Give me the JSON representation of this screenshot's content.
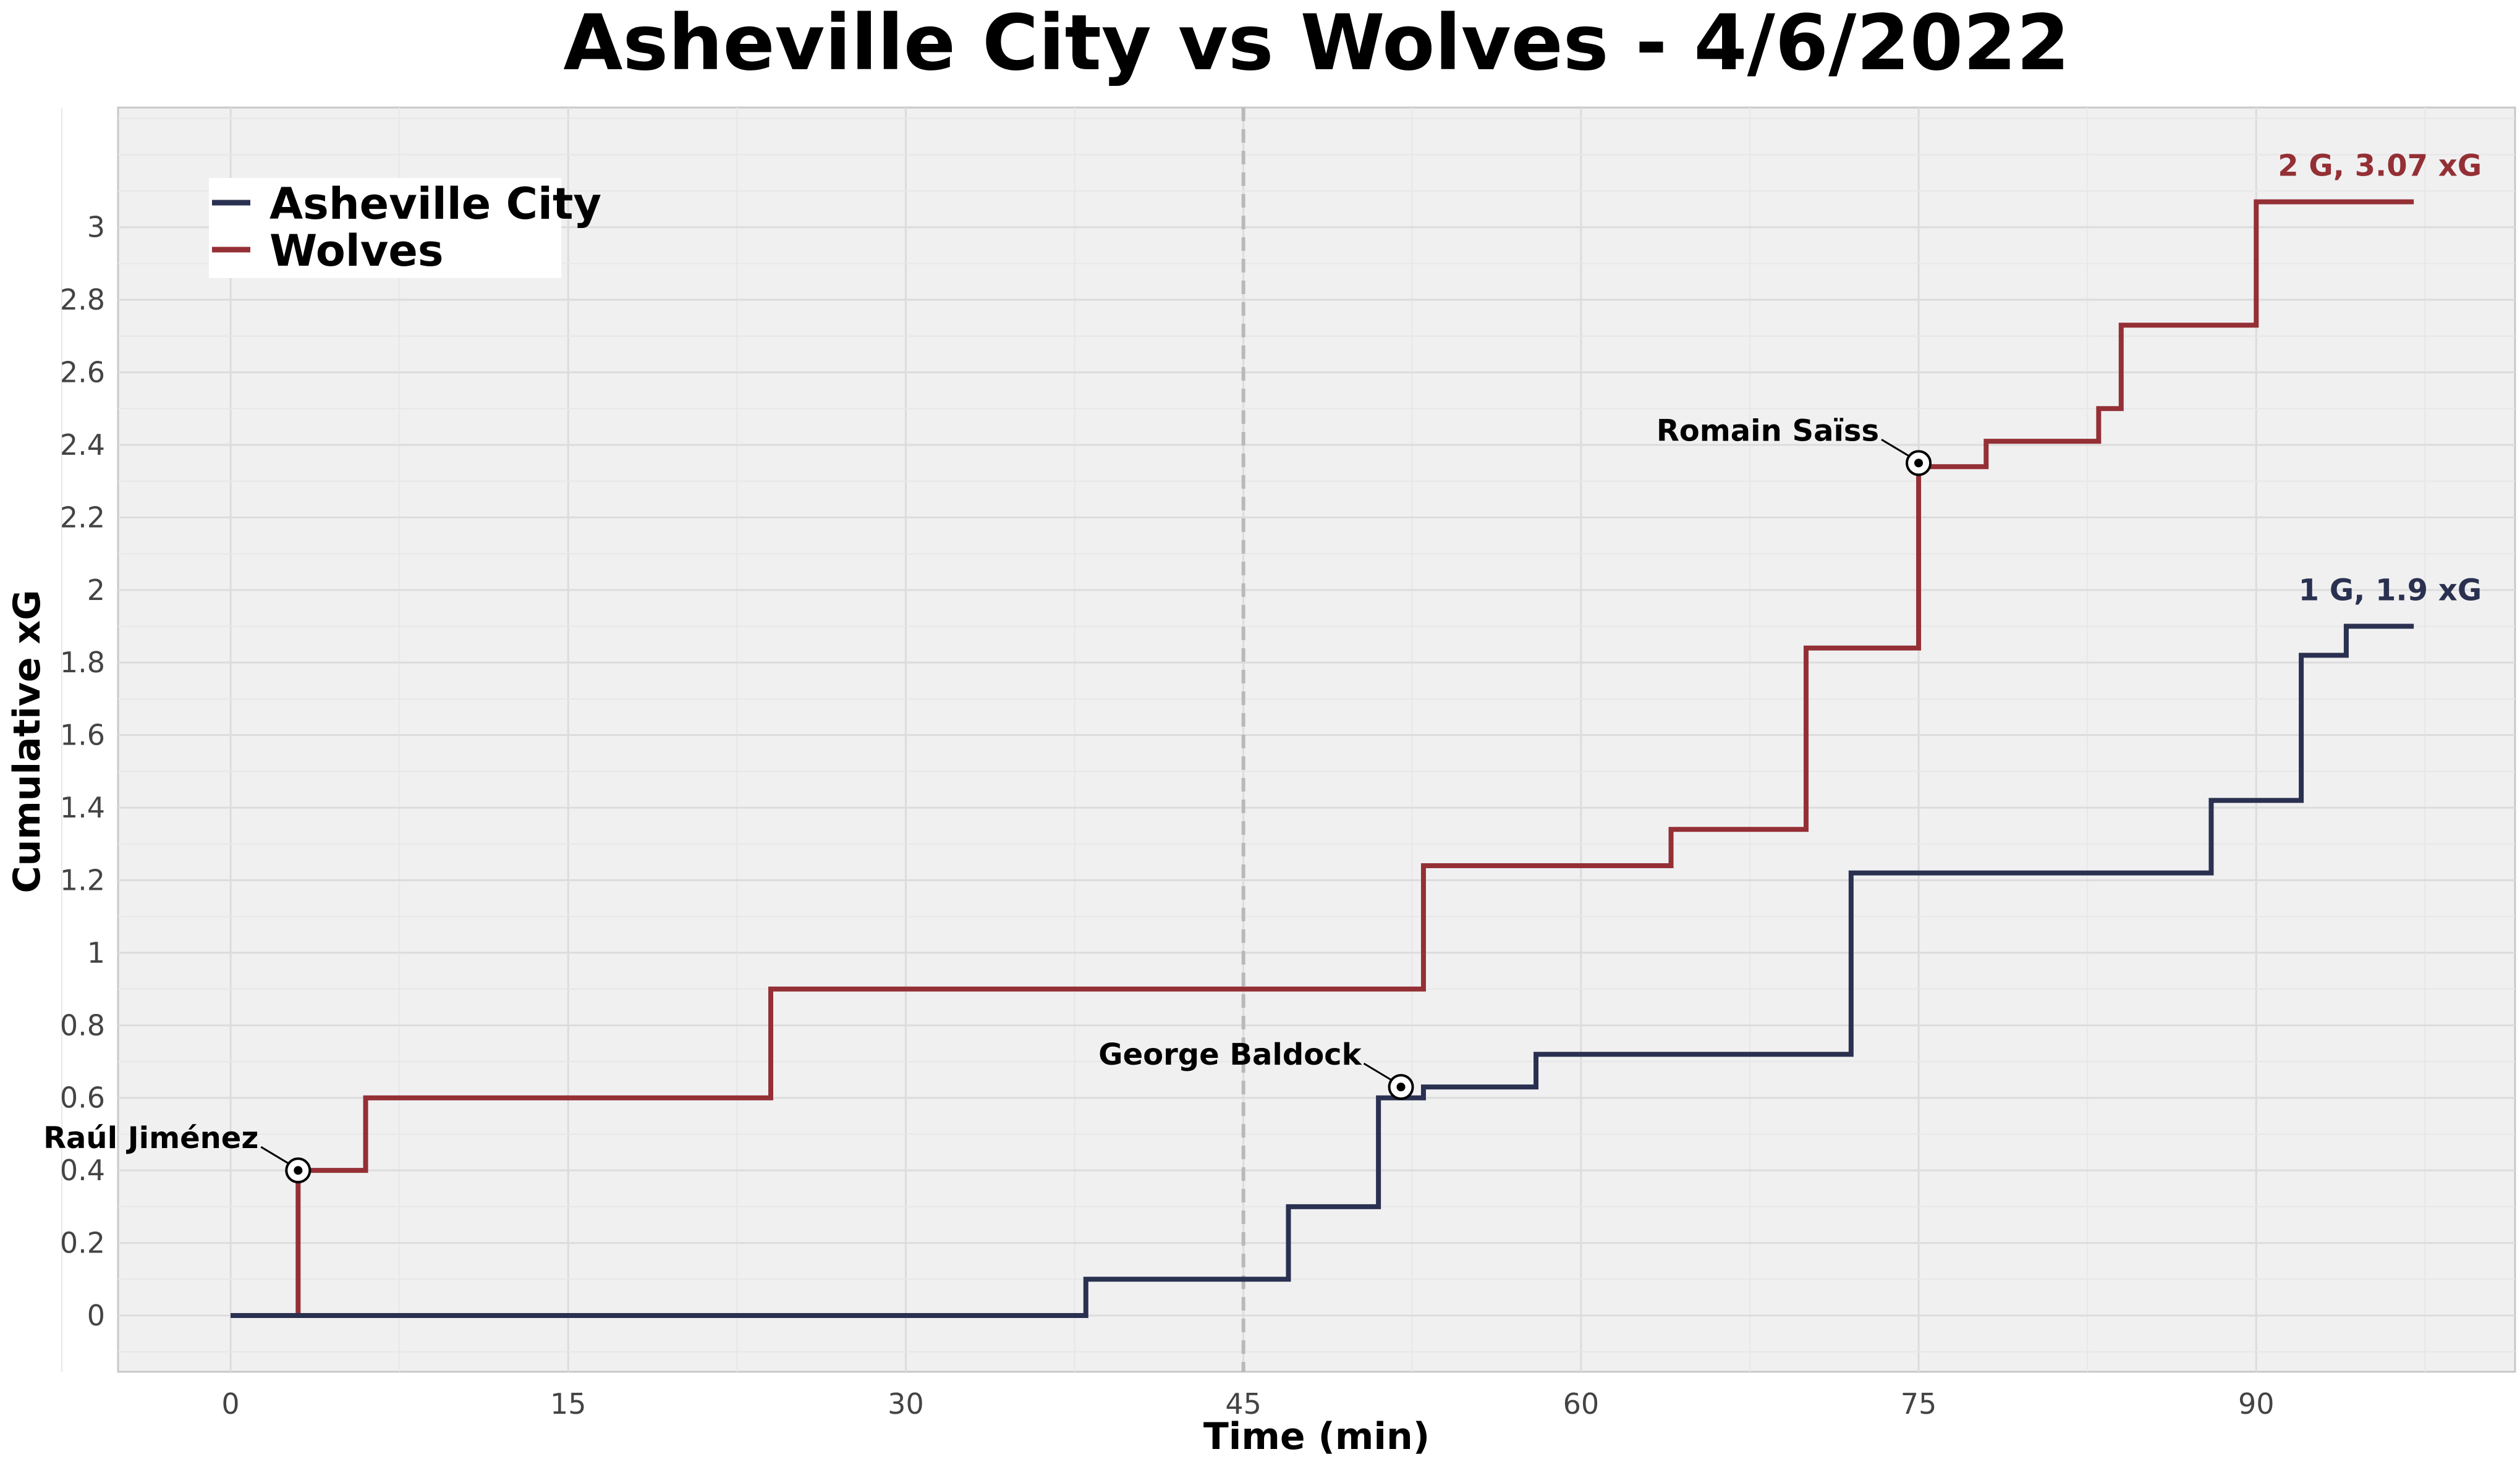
{
  "chart_data": {
    "type": "line",
    "step": true,
    "title": "Asheville City vs Wolves - 4/6/2022",
    "xlabel": "Time (min)",
    "ylabel": "Cumulative xG",
    "xlim": [
      -5,
      101.5
    ],
    "ylim": [
      -0.155,
      3.33
    ],
    "x_ticks": [
      0,
      15,
      30,
      45,
      60,
      75,
      90
    ],
    "y_ticks": [
      0,
      0.2,
      0.4,
      0.6,
      0.8,
      1,
      1.2,
      1.4,
      1.6,
      1.8,
      2,
      2.2,
      2.4,
      2.6,
      2.8,
      3
    ],
    "y_tick_labels": [
      "0",
      "0.2",
      "0.4",
      "0.6",
      "0.8",
      "1",
      "1.2",
      "1.4",
      "1.6",
      "1.8",
      "2",
      "2.2",
      "2.4",
      "2.6",
      "2.8",
      "3"
    ],
    "grid": true,
    "halftime_line": 45,
    "legend_position": "top-left",
    "series": [
      {
        "name": "Asheville City",
        "color": "#2a3150",
        "x": [
          0,
          38,
          47,
          51,
          53,
          58,
          72,
          88,
          92,
          94,
          97
        ],
        "y": [
          0,
          0.1,
          0.3,
          0.6,
          0.63,
          0.72,
          1.22,
          1.42,
          1.82,
          1.9,
          1.9
        ],
        "end_label": "1 G, 1.9 xG",
        "goals": [
          {
            "player": "George Baldock",
            "x": 52,
            "y": 0.63
          }
        ]
      },
      {
        "name": "Wolves",
        "color": "#943035",
        "x": [
          0,
          3,
          6,
          24,
          53,
          64,
          70,
          75,
          78,
          83,
          84,
          90,
          97
        ],
        "y": [
          0,
          0.4,
          0.6,
          0.9,
          1.24,
          1.34,
          1.84,
          2.34,
          2.41,
          2.5,
          2.73,
          3.07,
          3.07
        ],
        "end_label": "2 G, 3.07 xG",
        "goals": [
          {
            "player": "Raúl Jiménez",
            "x": 3,
            "y": 0.4
          },
          {
            "player": "Romain Saïss",
            "x": 75,
            "y": 2.35
          }
        ]
      }
    ]
  }
}
